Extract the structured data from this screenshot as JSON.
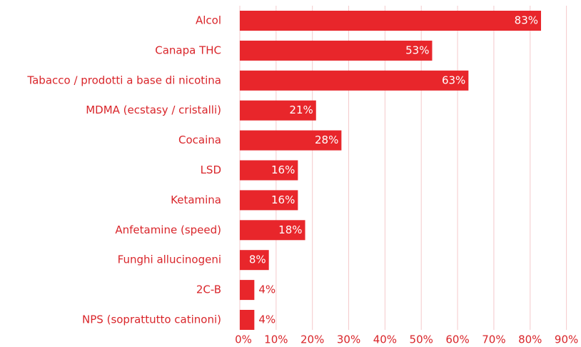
{
  "chart_data": {
    "type": "bar",
    "orientation": "horizontal",
    "categories": [
      "Alcol",
      "Canapa THC",
      "Tabacco / prodotti a base di nicotina",
      "MDMA (ecstasy / cristalli)",
      "Cocaina",
      "LSD",
      "Ketamina",
      "Anfetamine (speed)",
      "Funghi allucinogeni",
      "2C-B",
      "NPS (soprattutto catinoni)"
    ],
    "values": [
      83,
      53,
      63,
      21,
      28,
      16,
      16,
      18,
      8,
      4,
      4
    ],
    "value_labels": [
      "83%",
      "53%",
      "63%",
      "21%",
      "28%",
      "16%",
      "16%",
      "18%",
      "8%",
      "4%",
      "4%"
    ],
    "color": "#e8262b",
    "xlim": [
      0,
      90
    ],
    "xticks": [
      {
        "value": 0,
        "label": "0%"
      },
      {
        "value": 10,
        "label": "10%"
      },
      {
        "value": 20,
        "label": "20%"
      },
      {
        "value": 30,
        "label": "30%"
      },
      {
        "value": 40,
        "label": "40%"
      },
      {
        "value": 50,
        "label": "50%"
      },
      {
        "value": 60,
        "label": "60%"
      },
      {
        "value": 70,
        "label": "70%"
      },
      {
        "value": 80,
        "label": "80%"
      },
      {
        "value": 90,
        "label": "90%"
      }
    ],
    "grid": true
  }
}
